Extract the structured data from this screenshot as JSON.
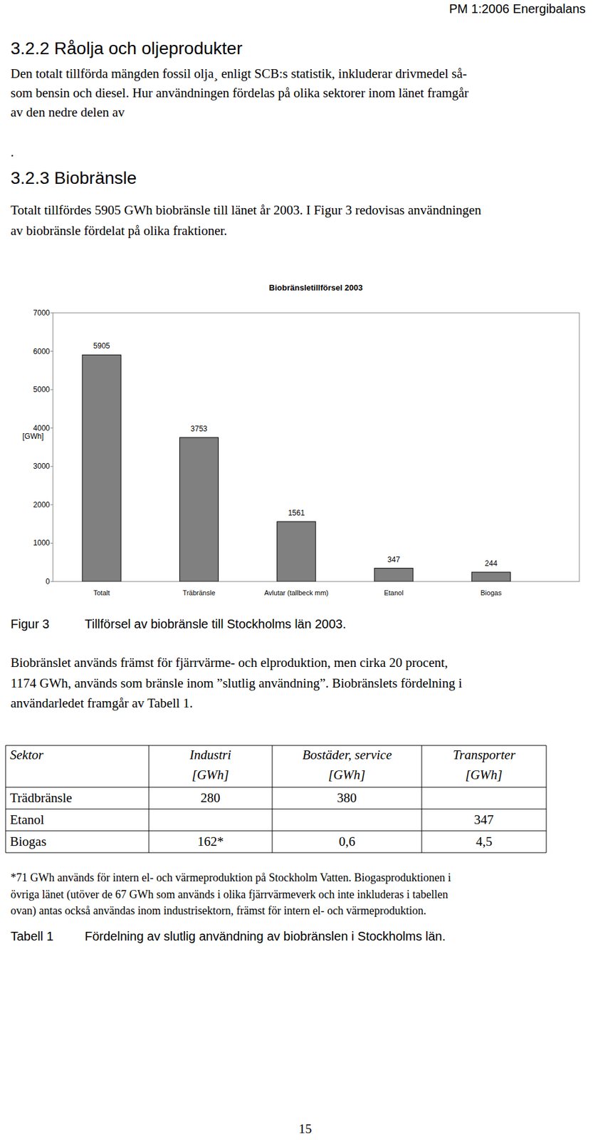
{
  "header": {
    "text": "PM 1:2006 Energibalans"
  },
  "section1": {
    "heading": "3.2.2 Råolja och oljeprodukter",
    "lines": [
      "Den totalt tillförda mängden fossil olja¸ enligt SCB:s statistik, inkluderar drivmedel så-",
      "som bensin och diesel. Hur användningen fördelas på olika sektorer inom länet framgår",
      "av den nedre delen av"
    ]
  },
  "stray": ".",
  "section2": {
    "heading": "3.2.3 Biobränsle",
    "lines": [
      "Totalt tillfördes 5905 GWh biobränsle till länet år 2003. I Figur 3 redovisas användningen",
      "av biobränsle fördelat på olika fraktioner."
    ]
  },
  "chart_data": {
    "type": "bar",
    "title": "Biobränsletillförsel 2003",
    "y_label": "[GWh]",
    "categories": [
      "Totalt",
      "Träbränsle",
      "Avlutar (tallbeck mm)",
      "Etanol",
      "Biogas"
    ],
    "values": [
      5905,
      3753,
      1561,
      347,
      244
    ],
    "color": "#808080",
    "ylim": [
      0,
      7000
    ],
    "yticks": [
      0,
      1000,
      2000,
      3000,
      4000,
      5000,
      6000,
      7000
    ],
    "grid": false,
    "data_labels": true
  },
  "figure_caption": {
    "label": "Figur 3",
    "text": "Tillförsel av biobränsle till Stockholms län 2003."
  },
  "paragraph": {
    "lines": [
      "Biobränslet används främst för fjärrvärme- och elproduktion, men cirka 20 procent,",
      "1174 GWh, används som bränsle inom ”slutlig användning”. Biobränslets fördelning i",
      "användarledet framgår av Tabell 1."
    ]
  },
  "table": {
    "header": [
      [
        "Sektor"
      ],
      [
        "Industri",
        "[GWh]"
      ],
      [
        "Bostäder, service",
        "[GWh]"
      ],
      [
        "Transporter",
        "[GWh]"
      ]
    ],
    "rows": [
      [
        "Trädbränsle",
        "280",
        "380",
        null
      ],
      [
        "Etanol",
        null,
        null,
        "347"
      ],
      [
        "Biogas",
        "162*",
        "0,6",
        "4,5"
      ]
    ]
  },
  "footnote": {
    "lines": [
      "*71 GWh används för intern el- och värmeproduktion på Stockholm Vatten. Biogasproduktionen i",
      "övriga länet (utöver de 67 GWh som används i olika fjärrvärmeverk och inte inkluderas i tabellen",
      "ovan) antas också användas inom industrisektorn, främst för intern el- och värmeproduktion."
    ]
  },
  "table_caption": {
    "label": "Tabell 1",
    "text": "Fördelning av slutlig användning av biobränslen i Stockholms län."
  },
  "page_number": "15"
}
